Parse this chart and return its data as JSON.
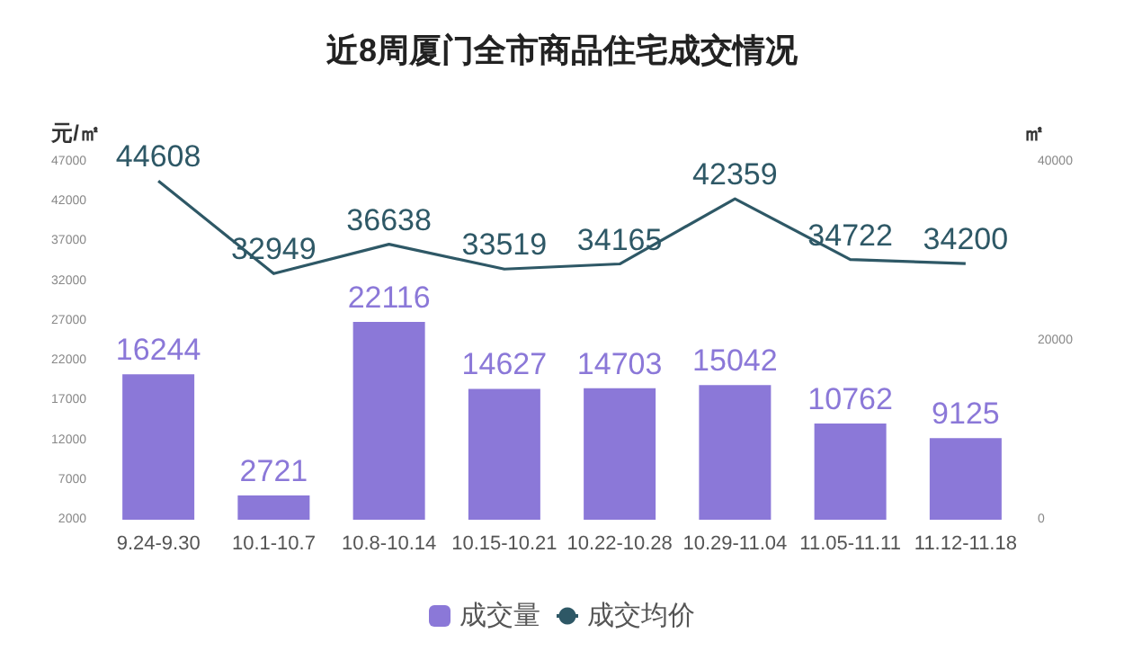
{
  "chart_data": {
    "type": "bar",
    "title": "近8周厦门全市商品住宅成交情况",
    "ylabel": "元/㎡",
    "y2label": "㎡",
    "categories": [
      "9.24-9.30",
      "10.1-10.7",
      "10.8-10.14",
      "10.15-10.21",
      "10.22-10.28",
      "10.29-11.04",
      "11.05-11.11",
      "11.12-11.18"
    ],
    "series": [
      {
        "name": "成交量",
        "axis": "y2",
        "color": "#8b78d8",
        "values": [
          16244,
          2721,
          22116,
          14627,
          14703,
          15042,
          10762,
          9125
        ]
      },
      {
        "name": "成交均价",
        "type": "line",
        "axis": "y",
        "color": "#2e5866",
        "values": [
          44608,
          32949,
          36638,
          33519,
          34165,
          42359,
          34722,
          34200
        ]
      }
    ],
    "ylim": [
      2000,
      47000
    ],
    "yticks": [
      2000,
      7000,
      12000,
      17000,
      22000,
      27000,
      32000,
      37000,
      42000,
      47000
    ],
    "y2lim": [
      0,
      40000
    ],
    "y2ticks": [
      0,
      20000,
      40000
    ],
    "data_labels": true,
    "legend": "bottom",
    "grid": false,
    "marker": "none",
    "line_style": "solid"
  }
}
